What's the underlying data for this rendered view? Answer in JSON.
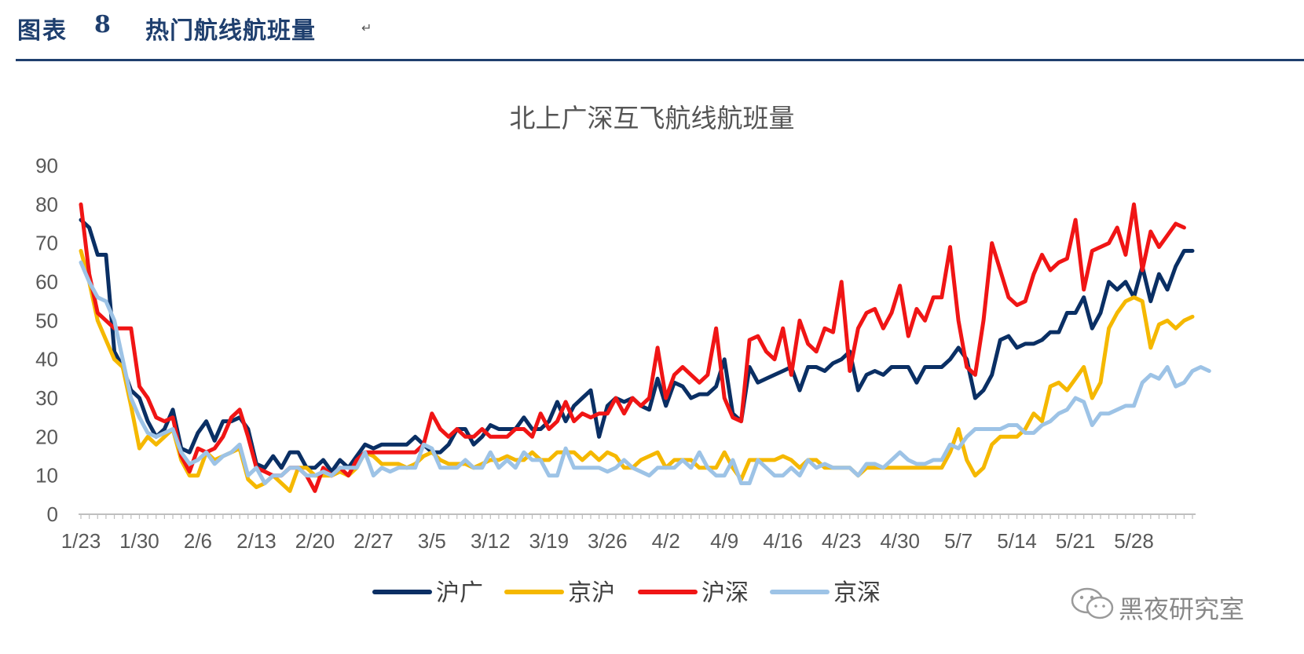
{
  "figure": {
    "label": "图表",
    "number": "8",
    "caption": "热门航线航班量",
    "return_mark": "↵"
  },
  "watermark": "黑夜研究室",
  "colors": {
    "沪广": "#0a2f64",
    "京沪": "#f5b800",
    "沪深": "#f01515",
    "京深": "#9dc3e6",
    "axis": "#bfbfbf",
    "text": "#595959"
  },
  "chart_data": {
    "type": "line",
    "title": "北上广深互飞航线航班量",
    "xlabel": "",
    "ylabel": "",
    "ylim": [
      0,
      90
    ],
    "yticks": [
      0,
      10,
      20,
      30,
      40,
      50,
      60,
      70,
      80,
      90
    ],
    "x_start": "1/23",
    "x_end": "5/28",
    "x_tick_labels": [
      "1/23",
      "1/30",
      "2/6",
      "2/13",
      "2/20",
      "2/27",
      "3/5",
      "3/12",
      "3/19",
      "3/26",
      "4/2",
      "4/9",
      "4/16",
      "4/23",
      "4/30",
      "5/7",
      "5/14",
      "5/21",
      "5/28"
    ],
    "grid": false,
    "legend_position": "bottom",
    "series": [
      {
        "name": "沪广",
        "values": [
          76,
          74,
          67,
          67,
          42,
          38,
          32,
          30,
          24,
          20,
          22,
          27,
          17,
          16,
          21,
          24,
          19,
          24,
          24,
          25,
          22,
          13,
          12,
          15,
          12,
          16,
          16,
          12,
          12,
          14,
          11,
          14,
          12,
          15,
          18,
          17,
          18,
          18,
          18,
          18,
          20,
          18,
          16,
          16,
          18,
          22,
          22,
          18,
          20,
          23,
          22,
          22,
          22,
          25,
          22,
          22,
          24,
          29,
          24,
          28,
          30,
          32,
          20,
          28,
          30,
          29,
          30,
          28,
          27,
          35,
          28,
          34,
          33,
          30,
          31,
          31,
          33,
          40,
          26,
          24,
          38,
          34,
          35,
          36,
          37,
          38,
          32,
          38,
          38,
          37,
          39,
          40,
          42,
          32,
          36,
          37,
          36,
          38,
          38,
          38,
          34,
          38,
          38,
          38,
          40,
          43,
          40,
          30,
          32,
          36,
          45,
          46,
          43,
          44,
          44,
          45,
          47,
          47,
          52,
          52,
          56,
          48,
          52,
          60,
          58,
          60,
          56,
          64,
          55,
          62,
          58,
          64,
          68,
          68
        ]
      },
      {
        "name": "京沪",
        "values": [
          68,
          60,
          50,
          45,
          40,
          38,
          28,
          17,
          20,
          18,
          20,
          22,
          14,
          10,
          10,
          16,
          14,
          15,
          16,
          17,
          9,
          7,
          8,
          10,
          8,
          6,
          12,
          12,
          10,
          10,
          10,
          11,
          10,
          12,
          16,
          15,
          13,
          13,
          13,
          12,
          13,
          15,
          16,
          14,
          13,
          13,
          13,
          12,
          13,
          14,
          14,
          15,
          14,
          14,
          16,
          14,
          14,
          16,
          16,
          16,
          14,
          16,
          14,
          16,
          15,
          12,
          12,
          14,
          15,
          16,
          12,
          14,
          14,
          14,
          12,
          12,
          12,
          16,
          12,
          9,
          14,
          14,
          14,
          14,
          15,
          14,
          12,
          14,
          14,
          12,
          12,
          12,
          12,
          10,
          12,
          12,
          12,
          12,
          12,
          12,
          12,
          12,
          12,
          12,
          16,
          22,
          14,
          10,
          12,
          18,
          20,
          20,
          20,
          22,
          26,
          24,
          33,
          34,
          32,
          35,
          38,
          30,
          34,
          48,
          52,
          55,
          56,
          55,
          43,
          49,
          50,
          48,
          50,
          51
        ]
      },
      {
        "name": "沪深",
        "values": [
          80,
          62,
          52,
          50,
          48,
          48,
          48,
          33,
          30,
          25,
          24,
          25,
          15,
          11,
          17,
          16,
          17,
          20,
          25,
          27,
          20,
          12,
          11,
          10,
          10,
          12,
          12,
          10,
          6,
          12,
          10,
          12,
          10,
          14,
          16,
          16,
          16,
          16,
          16,
          16,
          16,
          18,
          26,
          22,
          20,
          22,
          20,
          20,
          22,
          20,
          20,
          20,
          22,
          22,
          20,
          26,
          22,
          24,
          29,
          24,
          26,
          25,
          26,
          26,
          30,
          26,
          30,
          28,
          30,
          43,
          30,
          36,
          38,
          36,
          34,
          36,
          48,
          30,
          25,
          24,
          45,
          46,
          42,
          40,
          48,
          36,
          50,
          44,
          42,
          48,
          47,
          60,
          37,
          48,
          52,
          53,
          48,
          52,
          59,
          46,
          53,
          50,
          56,
          56,
          69,
          50,
          38,
          36,
          50,
          70,
          63,
          56,
          54,
          55,
          62,
          67,
          63,
          65,
          66,
          76,
          58,
          68,
          69,
          70,
          74,
          67,
          80,
          63,
          73,
          69,
          72,
          75,
          74
        ]
      },
      {
        "name": "京深",
        "values": [
          65,
          60,
          56,
          55,
          50,
          40,
          30,
          25,
          21,
          20,
          21,
          22,
          16,
          13,
          14,
          16,
          13,
          15,
          16,
          18,
          10,
          12,
          8,
          10,
          10,
          12,
          12,
          10,
          10,
          11,
          10,
          12,
          12,
          12,
          16,
          10,
          12,
          11,
          12,
          12,
          12,
          18,
          17,
          12,
          12,
          12,
          14,
          12,
          12,
          16,
          12,
          14,
          12,
          16,
          14,
          14,
          10,
          10,
          17,
          12,
          12,
          12,
          12,
          11,
          12,
          14,
          12,
          11,
          10,
          12,
          12,
          12,
          14,
          12,
          16,
          12,
          10,
          10,
          14,
          8,
          8,
          14,
          12,
          10,
          10,
          12,
          10,
          14,
          12,
          13,
          12,
          12,
          12,
          10,
          13,
          13,
          12,
          14,
          16,
          14,
          13,
          13,
          14,
          14,
          18,
          17,
          20,
          22,
          22,
          22,
          22,
          23,
          23,
          21,
          21,
          23,
          24,
          26,
          27,
          30,
          29,
          23,
          26,
          26,
          27,
          28,
          28,
          34,
          36,
          35,
          38,
          33,
          34,
          37,
          38,
          37
        ]
      }
    ]
  },
  "legend": [
    {
      "name": "沪广"
    },
    {
      "name": "京沪"
    },
    {
      "name": "沪深"
    },
    {
      "name": "京深"
    }
  ]
}
